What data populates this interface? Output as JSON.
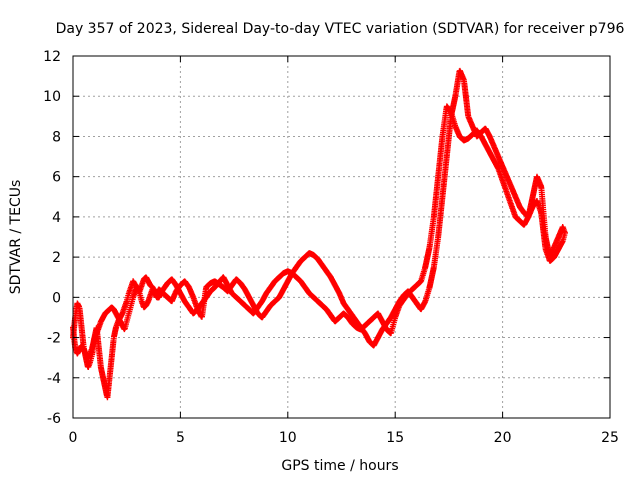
{
  "chart_data": {
    "type": "scatter",
    "title": "Day 357 of 2023, Sidereal Day-to-day VTEC variation (SDTVAR) for receiver p796",
    "xlabel": "GPS time / hours",
    "ylabel": "SDTVAR / TECUs",
    "xlim": [
      0,
      25
    ],
    "ylim": [
      -6,
      12
    ],
    "xticks": [
      0,
      5,
      10,
      15,
      20,
      25
    ],
    "yticks": [
      -6,
      -4,
      -2,
      0,
      2,
      4,
      6,
      8,
      10,
      12
    ],
    "grid": true,
    "marker": "+",
    "series": [
      {
        "name": "p796",
        "color": "#ff0000",
        "x": [
          0.0,
          0.1,
          0.2,
          0.3,
          0.4,
          0.5,
          0.6,
          0.7,
          0.8,
          0.9,
          1.0,
          1.1,
          1.2,
          1.3,
          1.4,
          1.5,
          1.6,
          1.7,
          1.8,
          1.9,
          2.0,
          2.1,
          2.2,
          2.3,
          2.4,
          2.5,
          2.6,
          2.7,
          2.8,
          2.9,
          3.0,
          3.1,
          3.2,
          3.3,
          3.4,
          3.5,
          3.6,
          3.7,
          3.8,
          3.9,
          4.0,
          4.2,
          4.4,
          4.6,
          4.8,
          5.0,
          5.2,
          5.4,
          5.6,
          5.8,
          6.0,
          6.2,
          6.4,
          6.6,
          7.0,
          7.2,
          7.4,
          7.6,
          7.8,
          8.0,
          8.2,
          8.4,
          8.6,
          8.8,
          9.0,
          9.2,
          9.4,
          9.6,
          9.8,
          10.0,
          10.2,
          10.4,
          10.6,
          10.8,
          11.0,
          11.2,
          11.4,
          11.6,
          11.8,
          12.0,
          12.2,
          12.4,
          12.6,
          12.8,
          13.0,
          13.2,
          13.4,
          13.6,
          13.8,
          14.0,
          14.2,
          14.4,
          14.6,
          14.8,
          15.0,
          15.2,
          15.4,
          15.6,
          15.8,
          16.0,
          16.2,
          16.4,
          16.6,
          16.8,
          17.0,
          17.2,
          17.4,
          17.6,
          17.8,
          18.0,
          18.2,
          18.4,
          18.6,
          18.8,
          19.0,
          19.2,
          19.4,
          19.6,
          19.8,
          20.0,
          20.2,
          20.4,
          20.6,
          20.8,
          21.0,
          21.2,
          21.4,
          21.6,
          21.8,
          22.0,
          22.2,
          22.4,
          22.6,
          22.8,
          22.9
        ],
        "y": [
          -2.0,
          -1.0,
          -0.3,
          -0.5,
          -1.5,
          -2.5,
          -3.0,
          -3.5,
          -3.2,
          -2.8,
          -2.0,
          -1.5,
          -2.5,
          -3.5,
          -4.0,
          -4.5,
          -5.0,
          -4.0,
          -3.0,
          -2.0,
          -1.5,
          -1.2,
          -1.0,
          -0.8,
          -0.5,
          -0.2,
          0.2,
          0.5,
          0.8,
          0.6,
          0.5,
          0.3,
          0.6,
          0.9,
          1.0,
          0.8,
          0.6,
          0.5,
          0.3,
          0.2,
          0.4,
          0.2,
          0.0,
          -0.2,
          0.3,
          0.6,
          0.8,
          0.5,
          0.0,
          -0.6,
          -1.0,
          0.5,
          0.7,
          0.8,
          0.5,
          0.3,
          0.6,
          0.9,
          0.7,
          0.4,
          0.0,
          -0.4,
          -0.8,
          -1.0,
          -0.7,
          -0.4,
          -0.2,
          0.0,
          0.4,
          0.8,
          1.2,
          1.5,
          1.8,
          2.0,
          2.2,
          2.1,
          1.9,
          1.6,
          1.3,
          1.0,
          0.6,
          0.2,
          -0.3,
          -0.6,
          -0.9,
          -1.2,
          -1.5,
          -1.8,
          -2.2,
          -2.4,
          -2.0,
          -1.6,
          -1.3,
          -1.0,
          -0.6,
          -0.2,
          0.1,
          0.3,
          0.0,
          -0.3,
          -0.6,
          -0.2,
          0.5,
          1.5,
          3.0,
          5.0,
          7.0,
          9.0,
          10.0,
          11.3,
          10.8,
          9.0,
          8.5,
          8.0,
          8.2,
          8.4,
          8.0,
          7.5,
          7.0,
          6.5,
          6.0,
          5.5,
          5.0,
          4.5,
          4.2,
          4.0,
          5.0,
          6.0,
          5.5,
          3.0,
          2.0,
          2.5,
          3.0,
          3.5,
          3.2
        ],
        "y2": [
          -1.5,
          -2.5,
          -2.8,
          -2.6,
          -2.4,
          -2.6,
          -2.8,
          -3.0,
          -2.8,
          -2.5,
          -2.0,
          -1.8,
          -1.5,
          -1.2,
          -1.0,
          -0.8,
          -0.7,
          -0.6,
          -0.5,
          -0.6,
          -0.8,
          -1.0,
          -1.2,
          -1.4,
          -1.6,
          -1.2,
          -0.8,
          -0.4,
          0.0,
          0.3,
          0.5,
          0.2,
          -0.2,
          -0.5,
          -0.4,
          -0.2,
          0.1,
          0.4,
          0.2,
          0.0,
          0.0,
          0.4,
          0.7,
          0.9,
          0.6,
          0.2,
          -0.2,
          -0.5,
          -0.8,
          -0.6,
          -0.3,
          0.0,
          0.3,
          0.5,
          1.0,
          0.6,
          0.2,
          0.0,
          -0.2,
          -0.4,
          -0.6,
          -0.8,
          -0.5,
          -0.2,
          0.2,
          0.5,
          0.8,
          1.0,
          1.2,
          1.3,
          1.2,
          1.0,
          0.8,
          0.5,
          0.2,
          0.0,
          -0.2,
          -0.4,
          -0.6,
          -0.9,
          -1.2,
          -1.0,
          -0.8,
          -1.0,
          -1.3,
          -1.5,
          -1.6,
          -1.4,
          -1.2,
          -1.0,
          -0.8,
          -1.2,
          -1.6,
          -1.8,
          -1.0,
          -0.4,
          -0.1,
          0.2,
          0.4,
          0.6,
          0.8,
          1.5,
          2.5,
          4.0,
          6.0,
          8.0,
          9.5,
          9.2,
          8.5,
          8.0,
          7.8,
          7.9,
          8.1,
          8.3,
          8.0,
          7.6,
          7.2,
          6.8,
          6.4,
          5.8,
          5.2,
          4.6,
          4.0,
          3.8,
          3.6,
          4.0,
          4.5,
          4.8,
          4.2,
          2.4,
          1.8,
          2.0,
          2.4,
          2.8,
          3.2
        ]
      }
    ]
  }
}
